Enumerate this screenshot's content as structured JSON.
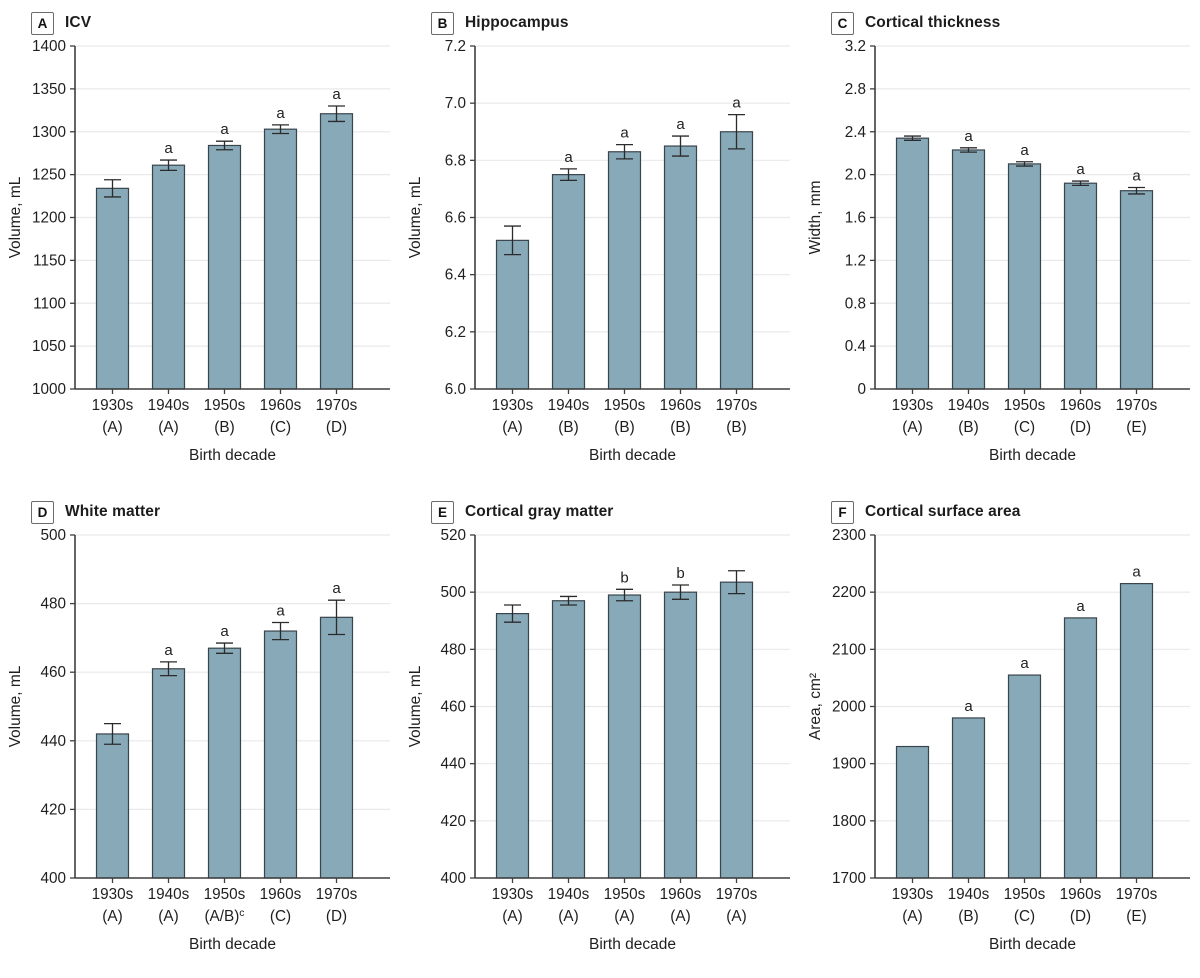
{
  "styles": {
    "bar_fill": "#87a9b8",
    "bar_stroke": "#39444c",
    "error_color": "#2b2b2b",
    "axis_color": "#3f3f3f",
    "grid_color": "#e9e9e9",
    "text_color": "#1f1f1f",
    "panel_box_border": "#6b6b6b"
  },
  "chart_data": [
    {
      "type": "bar",
      "panel": "A",
      "title": "ICV",
      "ylabel": "Volume, mL",
      "xlabel": "Birth decade",
      "categories": [
        "1930s",
        "1940s",
        "1950s",
        "1960s",
        "1970s"
      ],
      "cohort_labels": [
        "(A)",
        "(A)",
        "(B)",
        "(C)",
        "(D)"
      ],
      "cohort_sups": [
        "",
        "",
        "",
        "",
        ""
      ],
      "values": [
        1234,
        1261,
        1284,
        1303,
        1321
      ],
      "errors": [
        10,
        6,
        5,
        5,
        9
      ],
      "sig_letters": [
        "",
        "a",
        "a",
        "a",
        "a"
      ],
      "ylim": [
        1000,
        1400
      ],
      "yticks": [
        1000,
        1050,
        1100,
        1150,
        1200,
        1250,
        1300,
        1350,
        1400
      ],
      "ytick_labels": [
        "1000",
        "1050",
        "1100",
        "1150",
        "1200",
        "1250",
        "1300",
        "1350",
        "1400"
      ],
      "grid": true
    },
    {
      "type": "bar",
      "panel": "B",
      "title": "Hippocampus",
      "ylabel": "Volume, mL",
      "xlabel": "Birth decade",
      "categories": [
        "1930s",
        "1940s",
        "1950s",
        "1960s",
        "1970s"
      ],
      "cohort_labels": [
        "(A)",
        "(B)",
        "(B)",
        "(B)",
        "(B)"
      ],
      "cohort_sups": [
        "",
        "",
        "",
        "",
        ""
      ],
      "values": [
        6.52,
        6.75,
        6.83,
        6.85,
        6.9
      ],
      "errors": [
        0.05,
        0.02,
        0.025,
        0.035,
        0.06
      ],
      "sig_letters": [
        "",
        "a",
        "a",
        "a",
        "a"
      ],
      "ylim": [
        6.0,
        7.2
      ],
      "yticks": [
        6.0,
        6.2,
        6.4,
        6.6,
        6.8,
        7.0,
        7.2
      ],
      "ytick_labels": [
        "6.0",
        "6.2",
        "6.4",
        "6.6",
        "6.8",
        "7.0",
        "7.2"
      ],
      "grid": true
    },
    {
      "type": "bar",
      "panel": "C",
      "title": "Cortical thickness",
      "ylabel": "Width, mm",
      "xlabel": "Birth decade",
      "categories": [
        "1930s",
        "1940s",
        "1950s",
        "1960s",
        "1970s"
      ],
      "cohort_labels": [
        "(A)",
        "(B)",
        "(C)",
        "(D)",
        "(E)"
      ],
      "cohort_sups": [
        "",
        "",
        "",
        "",
        ""
      ],
      "values": [
        2.34,
        2.23,
        2.1,
        1.92,
        1.85
      ],
      "errors": [
        0.02,
        0.02,
        0.02,
        0.02,
        0.03
      ],
      "sig_letters": [
        "",
        "a",
        "a",
        "a",
        "a"
      ],
      "ylim": [
        0,
        3.2
      ],
      "yticks": [
        0,
        0.4,
        0.8,
        1.2,
        1.6,
        2.0,
        2.4,
        2.8,
        3.2
      ],
      "ytick_labels": [
        "0",
        "0.4",
        "0.8",
        "1.2",
        "1.6",
        "2.0",
        "2.4",
        "2.8",
        "3.2"
      ],
      "grid": true
    },
    {
      "type": "bar",
      "panel": "D",
      "title": "White matter",
      "ylabel": "Volume, mL",
      "xlabel": "Birth decade",
      "categories": [
        "1930s",
        "1940s",
        "1950s",
        "1960s",
        "1970s"
      ],
      "cohort_labels": [
        "(A)",
        "(A)",
        "(A/B)",
        "(C)",
        "(D)"
      ],
      "cohort_sups": [
        "",
        "",
        "c",
        "",
        ""
      ],
      "values": [
        442,
        461,
        467,
        472,
        476
      ],
      "errors": [
        3,
        2,
        1.5,
        2.5,
        5
      ],
      "sig_letters": [
        "",
        "a",
        "a",
        "a",
        "a"
      ],
      "ylim": [
        400,
        500
      ],
      "yticks": [
        400,
        420,
        440,
        460,
        480,
        500
      ],
      "ytick_labels": [
        "400",
        "420",
        "440",
        "460",
        "480",
        "500"
      ],
      "grid": true
    },
    {
      "type": "bar",
      "panel": "E",
      "title": "Cortical gray matter",
      "ylabel": "Volume, mL",
      "xlabel": "Birth decade",
      "categories": [
        "1930s",
        "1940s",
        "1950s",
        "1960s",
        "1970s"
      ],
      "cohort_labels": [
        "(A)",
        "(A)",
        "(A)",
        "(A)",
        "(A)"
      ],
      "cohort_sups": [
        "",
        "",
        "",
        "",
        ""
      ],
      "values": [
        492.5,
        497,
        499,
        500,
        503.5
      ],
      "errors": [
        3,
        1.5,
        2,
        2.5,
        4
      ],
      "sig_letters": [
        "",
        "",
        "b",
        "b",
        ""
      ],
      "ylim": [
        400,
        520
      ],
      "yticks": [
        400,
        420,
        440,
        460,
        480,
        500,
        520
      ],
      "ytick_labels": [
        "400",
        "420",
        "440",
        "460",
        "480",
        "500",
        "520"
      ],
      "grid": true
    },
    {
      "type": "bar",
      "panel": "F",
      "title": "Cortical surface area",
      "ylabel": "Area, cm²",
      "xlabel": "Birth decade",
      "categories": [
        "1930s",
        "1940s",
        "1950s",
        "1960s",
        "1970s"
      ],
      "cohort_labels": [
        "(A)",
        "(B)",
        "(C)",
        "(D)",
        "(E)"
      ],
      "cohort_sups": [
        "",
        "",
        "",
        "",
        ""
      ],
      "values": [
        1930,
        1980,
        2055,
        2155,
        2215
      ],
      "errors": null,
      "sig_letters": [
        "",
        "a",
        "a",
        "a",
        "a"
      ],
      "ylim": [
        1700,
        2300
      ],
      "yticks": [
        1700,
        1800,
        1900,
        2000,
        2100,
        2200,
        2300
      ],
      "ytick_labels": [
        "1700",
        "1800",
        "1900",
        "2000",
        "2100",
        "2200",
        "2300"
      ],
      "grid": true
    }
  ]
}
